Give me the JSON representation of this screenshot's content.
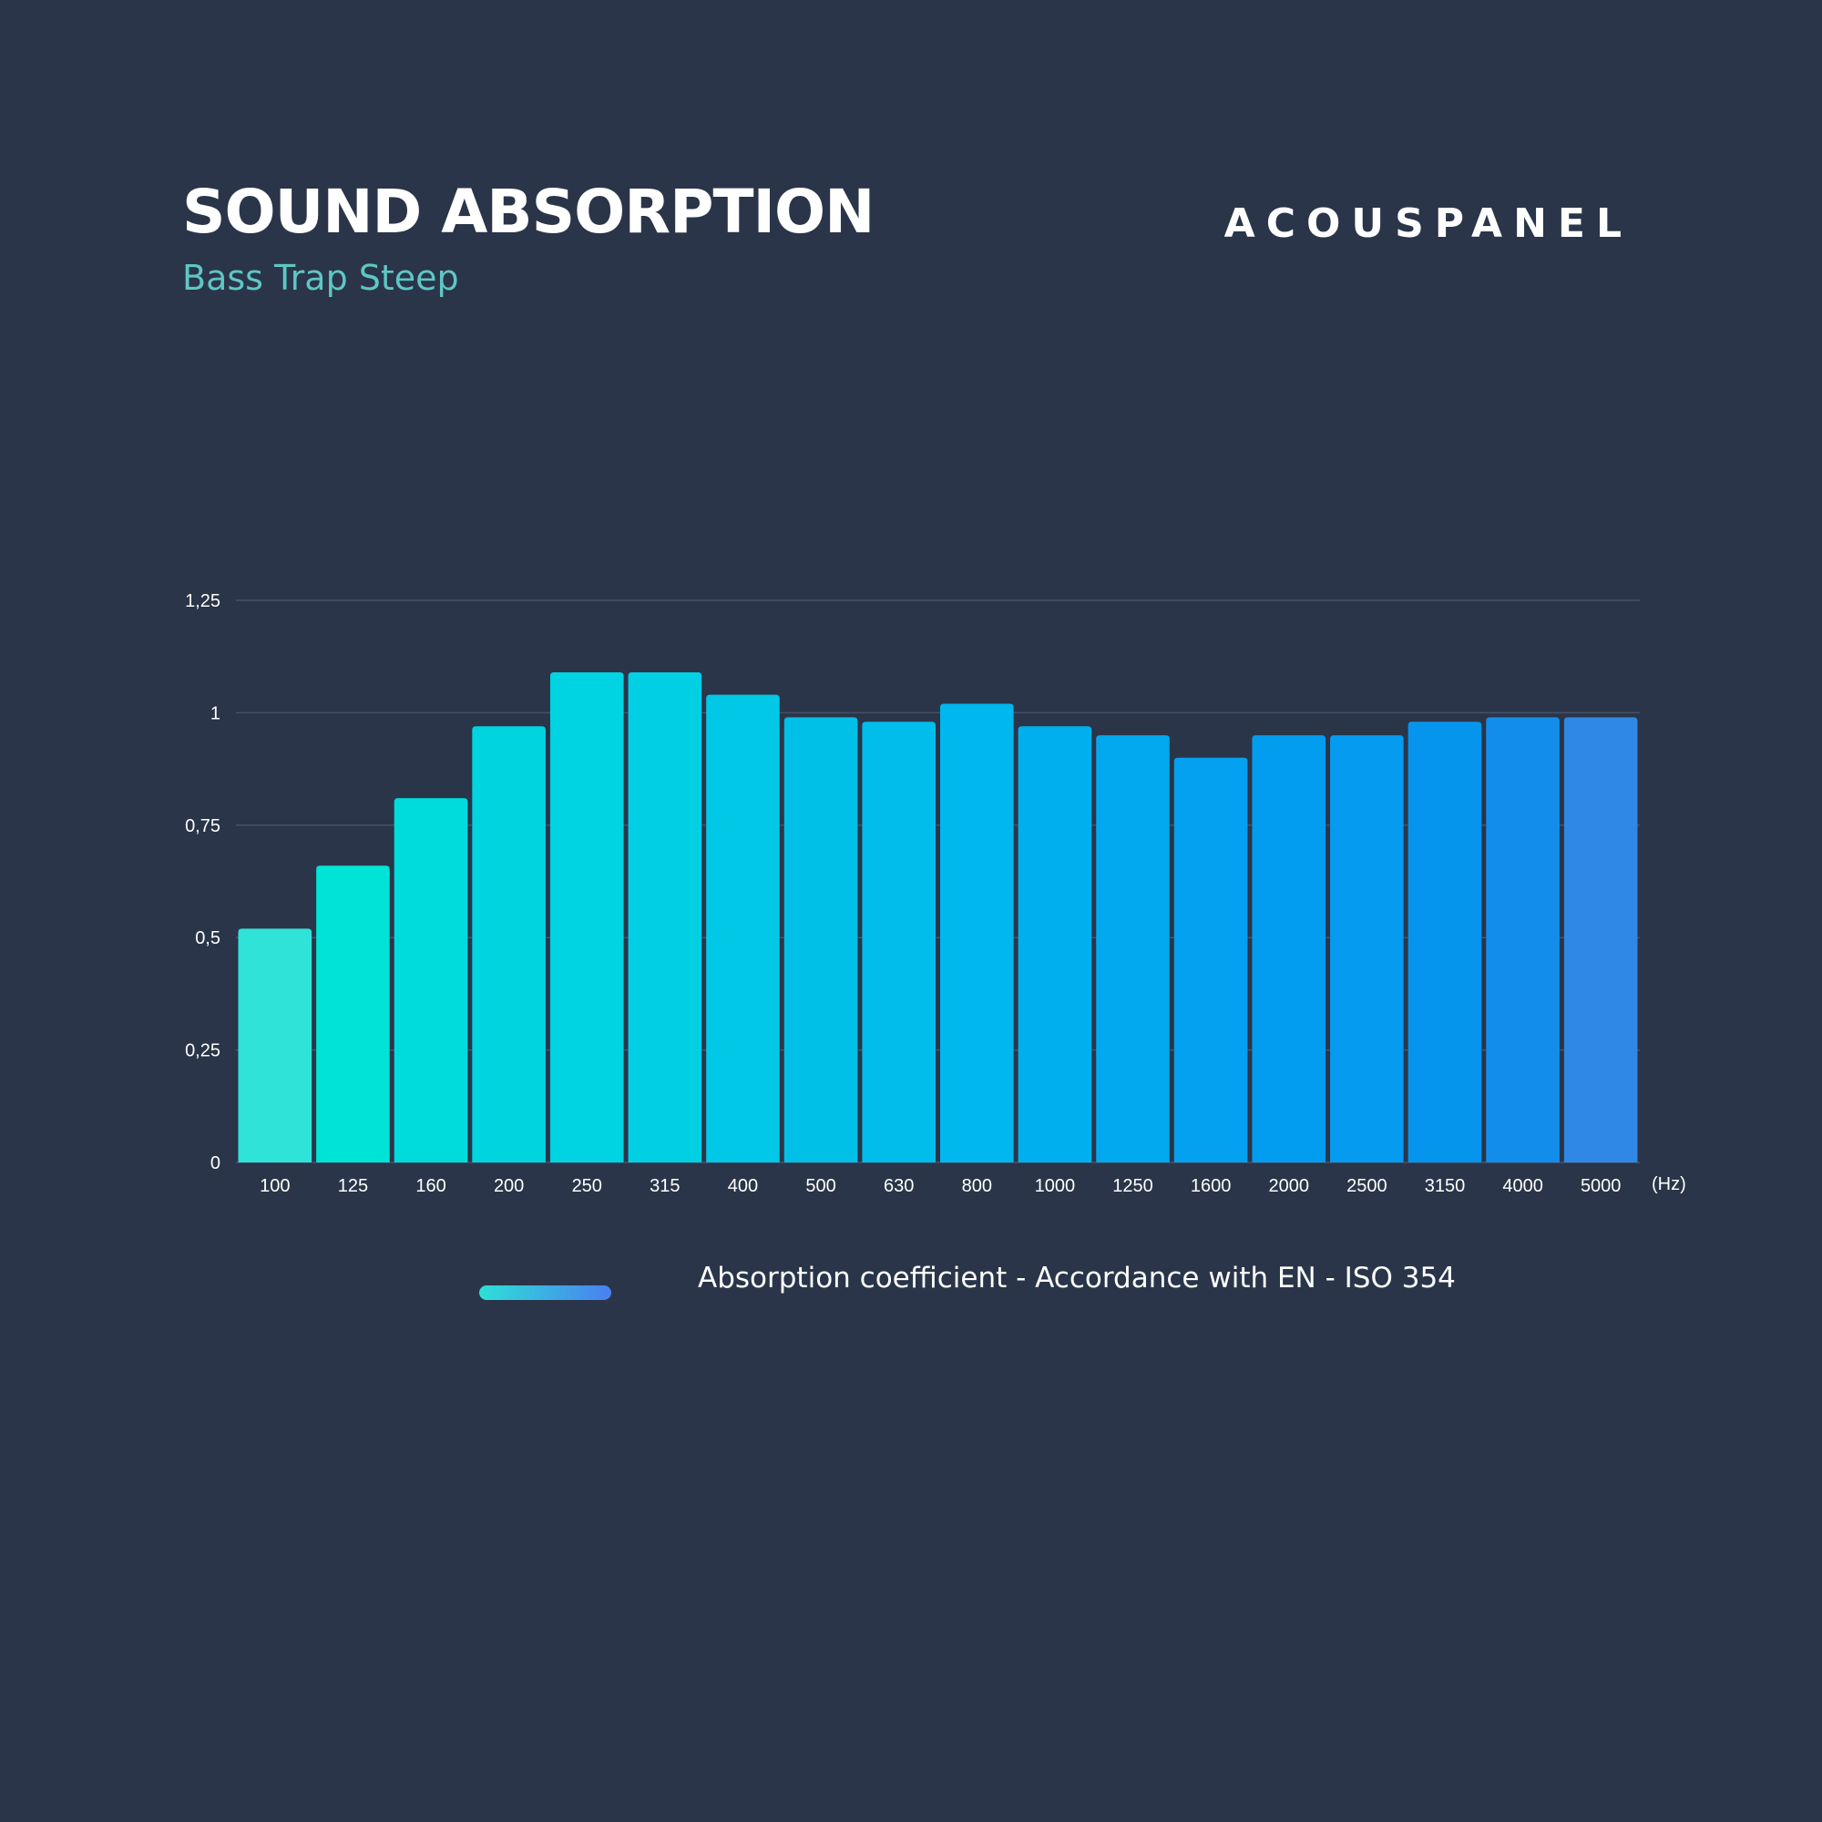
{
  "header": {
    "title": "SOUND ABSORPTION",
    "subtitle": "Bass Trap Steep",
    "brand": "ACOUSPANEL"
  },
  "legend": {
    "label": "Absorption coefficient - Accordance with EN - ISO 354",
    "swatch_colors": [
      "#2de0d6",
      "#4a7ff0"
    ]
  },
  "chart_data": {
    "type": "bar",
    "title": "SOUND ABSORPTION",
    "subtitle": "Bass Trap Steep",
    "xlabel": "",
    "x_unit": "(Hz)",
    "ylabel": "",
    "ylim": [
      0,
      1.25
    ],
    "yticks": [
      0,
      0.25,
      0.5,
      0.75,
      1,
      1.25
    ],
    "ytick_labels": [
      "0",
      "0,25",
      "0,5",
      "0,75",
      "1",
      "1,25"
    ],
    "grid": true,
    "legend_position": "bottom",
    "categories": [
      "100",
      "125",
      "160",
      "200",
      "250",
      "315",
      "400",
      "500",
      "630",
      "800",
      "1000",
      "1250",
      "1600",
      "2000",
      "2500",
      "3150",
      "4000",
      "5000"
    ],
    "values": [
      0.52,
      0.66,
      0.81,
      0.97,
      1.09,
      1.09,
      1.04,
      0.99,
      0.98,
      1.02,
      0.97,
      0.95,
      0.9,
      0.95,
      0.95,
      0.98,
      0.99,
      0.99
    ],
    "bar_colors": [
      "#30e3d8",
      "#00e3d7",
      "#00dcdc",
      "#00d4df",
      "#00d3e2",
      "#00cfe4",
      "#00c8e6",
      "#00c0e8",
      "#00bdeb",
      "#00b7ee",
      "#00b0ee",
      "#03a9ee",
      "#03a1ef",
      "#039df0",
      "#049bf0",
      "#0595ed",
      "#138deb",
      "#2f88e6"
    ]
  }
}
